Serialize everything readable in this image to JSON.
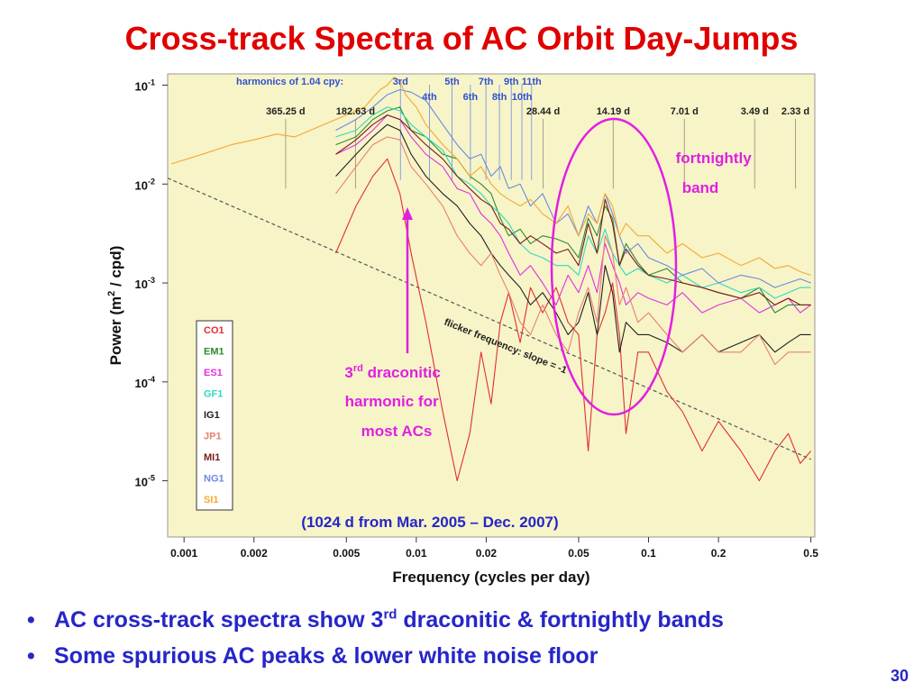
{
  "slide": {
    "title": "Cross-track Spectra of AC Orbit Day-Jumps",
    "page_number": "30",
    "bullets": [
      {
        "pre": "AC cross-track spectra show 3",
        "sup": "rd",
        "post": " draconitic & fortnightly bands"
      },
      {
        "pre": "Some spurious AC peaks & lower white noise floor",
        "sup": "",
        "post": ""
      }
    ]
  },
  "chart_data": {
    "type": "line",
    "xlabel": "Frequency (cycles per day)",
    "ylabel_parts": {
      "pre": "Power (m",
      "sup": "2",
      "post": " / cpd)"
    },
    "x_scale": "log",
    "y_scale": "log",
    "xlim": [
      0.00085,
      0.52
    ],
    "ylim": [
      2.7e-06,
      0.13
    ],
    "x_ticks": [
      {
        "value": 0.001,
        "label": "0.001"
      },
      {
        "value": 0.002,
        "label": "0.002"
      },
      {
        "value": 0.005,
        "label": "0.005"
      },
      {
        "value": 0.01,
        "label": "0.01"
      },
      {
        "value": 0.02,
        "label": "0.02"
      },
      {
        "value": 0.05,
        "label": "0.05"
      },
      {
        "value": 0.1,
        "label": "0.1"
      },
      {
        "value": 0.2,
        "label": "0.2"
      },
      {
        "value": 0.5,
        "label": "0.5"
      }
    ],
    "y_ticks": [
      {
        "value": 0.1,
        "base": "10",
        "exp": "-1"
      },
      {
        "value": 0.01,
        "base": "10",
        "exp": "-2"
      },
      {
        "value": 0.001,
        "base": "10",
        "exp": "-3"
      },
      {
        "value": 0.0001,
        "base": "10",
        "exp": "-4"
      },
      {
        "value": 1e-05,
        "base": "10",
        "exp": "-5"
      }
    ],
    "harmonics_label": "harmonics of 1.04 cpy:",
    "harmonics": [
      {
        "freq": 0.00855,
        "label": "3rd"
      },
      {
        "freq": 0.0114,
        "label": "4th"
      },
      {
        "freq": 0.01425,
        "label": "5th"
      },
      {
        "freq": 0.0171,
        "label": "6th"
      },
      {
        "freq": 0.01995,
        "label": "7th"
      },
      {
        "freq": 0.0228,
        "label": "8th"
      },
      {
        "freq": 0.02565,
        "label": "9th"
      },
      {
        "freq": 0.0285,
        "label": "10th"
      },
      {
        "freq": 0.03135,
        "label": "11th"
      }
    ],
    "period_lines": [
      {
        "freq": 0.002738,
        "label": "365.25 d"
      },
      {
        "freq": 0.005475,
        "label": "182.63 d"
      },
      {
        "freq": 0.03516,
        "label": "28.44 d"
      },
      {
        "freq": 0.07047,
        "label": "14.19 d"
      },
      {
        "freq": 0.1427,
        "label": "7.01 d"
      },
      {
        "freq": 0.2865,
        "label": "3.49 d"
      },
      {
        "freq": 0.4292,
        "label": "2.33 d"
      }
    ],
    "flicker_line": {
      "label": "flicker frequency: slope = -1",
      "x": [
        0.00085,
        0.5
      ],
      "y": [
        0.0115,
        1.65e-05
      ]
    },
    "legend_position": "left",
    "series": [
      {
        "name": "CO1",
        "color": "#e03030",
        "x": [
          0.0045,
          0.0055,
          0.0065,
          0.0075,
          0.0085,
          0.0095,
          0.011,
          0.013,
          0.015,
          0.017,
          0.019,
          0.021,
          0.023,
          0.025,
          0.028,
          0.031,
          0.035,
          0.04,
          0.045,
          0.05,
          0.055,
          0.06,
          0.065,
          0.07,
          0.075,
          0.08,
          0.09,
          0.1,
          0.12,
          0.14,
          0.17,
          0.2,
          0.25,
          0.3,
          0.35,
          0.4,
          0.45,
          0.5
        ],
        "y": [
          0.002,
          0.006,
          0.012,
          0.018,
          0.008,
          0.002,
          0.0004,
          5e-05,
          1e-05,
          3e-05,
          0.0002,
          6e-05,
          0.0004,
          0.0008,
          0.00025,
          0.0009,
          0.0005,
          0.0009,
          0.0004,
          0.0003,
          2e-05,
          0.0003,
          0.0005,
          0.001,
          0.0003,
          3e-05,
          0.0002,
          0.0002,
          8e-05,
          5e-05,
          2e-05,
          4e-05,
          2e-05,
          1e-05,
          2e-05,
          3e-05,
          1.5e-05,
          2e-05
        ]
      },
      {
        "name": "EM1",
        "color": "#2e8b2e",
        "x": [
          0.0045,
          0.0055,
          0.0065,
          0.0075,
          0.0085,
          0.0095,
          0.011,
          0.013,
          0.015,
          0.017,
          0.019,
          0.021,
          0.023,
          0.025,
          0.028,
          0.031,
          0.035,
          0.04,
          0.045,
          0.05,
          0.055,
          0.06,
          0.065,
          0.07,
          0.075,
          0.08,
          0.09,
          0.1,
          0.12,
          0.14,
          0.17,
          0.2,
          0.25,
          0.3,
          0.35,
          0.4,
          0.45,
          0.5
        ],
        "y": [
          0.025,
          0.03,
          0.045,
          0.055,
          0.06,
          0.035,
          0.03,
          0.02,
          0.018,
          0.012,
          0.01,
          0.008,
          0.0045,
          0.003,
          0.0035,
          0.0025,
          0.003,
          0.0028,
          0.0025,
          0.0018,
          0.0045,
          0.003,
          0.006,
          0.0045,
          0.0015,
          0.0025,
          0.0016,
          0.0012,
          0.0014,
          0.001,
          0.0009,
          0.0008,
          0.0007,
          0.0009,
          0.0005,
          0.0006,
          0.0006,
          0.0006
        ]
      },
      {
        "name": "ES1",
        "color": "#e030e0",
        "x": [
          0.0045,
          0.0055,
          0.0065,
          0.0075,
          0.0085,
          0.0095,
          0.011,
          0.013,
          0.015,
          0.017,
          0.019,
          0.021,
          0.023,
          0.025,
          0.028,
          0.031,
          0.035,
          0.04,
          0.045,
          0.05,
          0.055,
          0.06,
          0.065,
          0.07,
          0.075,
          0.08,
          0.09,
          0.1,
          0.12,
          0.14,
          0.17,
          0.2,
          0.25,
          0.3,
          0.35,
          0.4,
          0.45,
          0.5
        ],
        "y": [
          0.02,
          0.025,
          0.035,
          0.05,
          0.045,
          0.03,
          0.02,
          0.015,
          0.009,
          0.008,
          0.005,
          0.004,
          0.003,
          0.002,
          0.0012,
          0.0015,
          0.001,
          0.0006,
          0.0012,
          0.0008,
          0.0015,
          0.0008,
          0.0025,
          0.0015,
          0.001,
          0.0006,
          0.0008,
          0.0007,
          0.0006,
          0.0008,
          0.0005,
          0.0006,
          0.0007,
          0.0005,
          0.0006,
          0.0007,
          0.0005,
          0.0006
        ]
      },
      {
        "name": "GF1",
        "color": "#30d8c0",
        "x": [
          0.0045,
          0.0055,
          0.0065,
          0.0075,
          0.0085,
          0.0095,
          0.011,
          0.013,
          0.015,
          0.017,
          0.019,
          0.021,
          0.023,
          0.025,
          0.028,
          0.031,
          0.035,
          0.04,
          0.045,
          0.05,
          0.055,
          0.06,
          0.065,
          0.07,
          0.075,
          0.08,
          0.09,
          0.1,
          0.12,
          0.14,
          0.17,
          0.2,
          0.25,
          0.3,
          0.35,
          0.4,
          0.45,
          0.5
        ],
        "y": [
          0.03,
          0.035,
          0.05,
          0.06,
          0.055,
          0.04,
          0.03,
          0.022,
          0.012,
          0.01,
          0.008,
          0.006,
          0.005,
          0.004,
          0.0025,
          0.002,
          0.0018,
          0.0015,
          0.0015,
          0.0012,
          0.003,
          0.002,
          0.0035,
          0.002,
          0.0015,
          0.0012,
          0.0014,
          0.0012,
          0.001,
          0.0012,
          0.0009,
          0.001,
          0.0008,
          0.0009,
          0.0007,
          0.0008,
          0.0009,
          0.0009
        ]
      },
      {
        "name": "IG1",
        "color": "#202020",
        "x": [
          0.0045,
          0.0055,
          0.0065,
          0.0075,
          0.0085,
          0.0095,
          0.011,
          0.013,
          0.015,
          0.017,
          0.019,
          0.021,
          0.023,
          0.025,
          0.028,
          0.031,
          0.035,
          0.04,
          0.045,
          0.05,
          0.055,
          0.06,
          0.065,
          0.07,
          0.075,
          0.08,
          0.09,
          0.1,
          0.12,
          0.14,
          0.17,
          0.2,
          0.25,
          0.3,
          0.35,
          0.4,
          0.45,
          0.5
        ],
        "y": [
          0.012,
          0.02,
          0.03,
          0.04,
          0.035,
          0.02,
          0.012,
          0.008,
          0.006,
          0.004,
          0.003,
          0.002,
          0.0015,
          0.0012,
          0.0009,
          0.0006,
          0.0008,
          0.0005,
          0.0003,
          0.0004,
          0.0008,
          0.0003,
          0.0015,
          0.0008,
          0.0002,
          0.0004,
          0.0003,
          0.0003,
          0.00025,
          0.0002,
          0.0003,
          0.0002,
          0.00025,
          0.0003,
          0.0002,
          0.00025,
          0.0003,
          0.0003
        ]
      },
      {
        "name": "JP1",
        "color": "#e88070",
        "x": [
          0.0045,
          0.0055,
          0.0065,
          0.0075,
          0.0085,
          0.0095,
          0.011,
          0.013,
          0.015,
          0.017,
          0.019,
          0.021,
          0.023,
          0.025,
          0.028,
          0.031,
          0.035,
          0.04,
          0.045,
          0.05,
          0.055,
          0.06,
          0.065,
          0.07,
          0.075,
          0.08,
          0.09,
          0.1,
          0.12,
          0.14,
          0.17,
          0.2,
          0.25,
          0.3,
          0.35,
          0.4,
          0.45,
          0.5
        ],
        "y": [
          0.008,
          0.015,
          0.025,
          0.03,
          0.028,
          0.015,
          0.01,
          0.006,
          0.003,
          0.002,
          0.0015,
          0.002,
          0.0012,
          0.0008,
          0.0004,
          0.0003,
          0.0006,
          0.0003,
          0.0002,
          0.0005,
          0.0009,
          0.0004,
          0.003,
          0.002,
          0.0006,
          0.0009,
          0.0004,
          0.0005,
          0.0003,
          0.0002,
          0.0003,
          0.0002,
          0.0002,
          0.0003,
          0.00015,
          0.0002,
          0.0002,
          0.0002
        ]
      },
      {
        "name": "MI1",
        "color": "#7a1a1a",
        "x": [
          0.0045,
          0.0055,
          0.0065,
          0.0075,
          0.0085,
          0.0095,
          0.011,
          0.013,
          0.015,
          0.017,
          0.019,
          0.021,
          0.023,
          0.025,
          0.028,
          0.031,
          0.035,
          0.04,
          0.045,
          0.05,
          0.055,
          0.06,
          0.065,
          0.07,
          0.075,
          0.08,
          0.09,
          0.1,
          0.12,
          0.14,
          0.17,
          0.2,
          0.25,
          0.3,
          0.35,
          0.4,
          0.45,
          0.5
        ],
        "y": [
          0.02,
          0.028,
          0.04,
          0.05,
          0.045,
          0.035,
          0.025,
          0.018,
          0.012,
          0.009,
          0.007,
          0.006,
          0.004,
          0.0035,
          0.0025,
          0.003,
          0.0025,
          0.002,
          0.0022,
          0.0015,
          0.004,
          0.002,
          0.007,
          0.004,
          0.0015,
          0.0022,
          0.0015,
          0.0012,
          0.0011,
          0.001,
          0.0009,
          0.0008,
          0.0007,
          0.0008,
          0.0006,
          0.0007,
          0.0006,
          0.0006
        ]
      },
      {
        "name": "NG1",
        "color": "#6a8ae0",
        "x": [
          0.0045,
          0.0055,
          0.0065,
          0.0075,
          0.0085,
          0.0095,
          0.011,
          0.013,
          0.015,
          0.017,
          0.019,
          0.021,
          0.023,
          0.025,
          0.028,
          0.031,
          0.035,
          0.04,
          0.045,
          0.05,
          0.055,
          0.06,
          0.065,
          0.07,
          0.075,
          0.08,
          0.09,
          0.1,
          0.12,
          0.14,
          0.17,
          0.2,
          0.25,
          0.3,
          0.35,
          0.4,
          0.45,
          0.5
        ],
        "y": [
          0.035,
          0.045,
          0.06,
          0.08,
          0.09,
          0.085,
          0.07,
          0.04,
          0.025,
          0.018,
          0.02,
          0.012,
          0.015,
          0.009,
          0.01,
          0.006,
          0.008,
          0.004,
          0.005,
          0.003,
          0.006,
          0.004,
          0.008,
          0.005,
          0.003,
          0.002,
          0.0025,
          0.0018,
          0.0015,
          0.0012,
          0.0014,
          0.001,
          0.0012,
          0.0011,
          0.0009,
          0.001,
          0.0011,
          0.001
        ]
      },
      {
        "name": "SI1",
        "color": "#f5a830",
        "x": [
          0.00088,
          0.0012,
          0.0016,
          0.002,
          0.0025,
          0.003,
          0.0035,
          0.004,
          0.0045,
          0.005,
          0.0055,
          0.006,
          0.0065,
          0.007,
          0.0075,
          0.008,
          0.0085,
          0.009,
          0.01,
          0.011,
          0.013,
          0.015,
          0.017,
          0.019,
          0.021,
          0.023,
          0.025,
          0.028,
          0.031,
          0.035,
          0.04,
          0.045,
          0.05,
          0.055,
          0.06,
          0.065,
          0.07,
          0.075,
          0.08,
          0.09,
          0.1,
          0.12,
          0.14,
          0.17,
          0.2,
          0.25,
          0.3,
          0.35,
          0.4,
          0.45,
          0.5
        ],
        "y": [
          0.016,
          0.02,
          0.025,
          0.028,
          0.032,
          0.03,
          0.035,
          0.04,
          0.045,
          0.05,
          0.055,
          0.06,
          0.075,
          0.09,
          0.1,
          0.12,
          0.11,
          0.08,
          0.06,
          0.04,
          0.025,
          0.018,
          0.012,
          0.015,
          0.01,
          0.008,
          0.007,
          0.006,
          0.007,
          0.005,
          0.004,
          0.006,
          0.003,
          0.005,
          0.004,
          0.008,
          0.006,
          0.003,
          0.004,
          0.003,
          0.003,
          0.002,
          0.0025,
          0.0018,
          0.002,
          0.0015,
          0.0018,
          0.0014,
          0.0015,
          0.0013,
          0.0012
        ]
      }
    ],
    "annotations": [
      {
        "id": "fortnightly",
        "lines": [
          "fortnightly",
          "band"
        ]
      },
      {
        "id": "draconitic",
        "line1_pre": "3",
        "line1_sup": "rd",
        "line1_post": " draconitic",
        "lines": [
          "harmonic for",
          "most ACs"
        ]
      },
      {
        "id": "note",
        "text": "(1024 d from Mar. 2005 – Dec. 2007)"
      }
    ]
  }
}
